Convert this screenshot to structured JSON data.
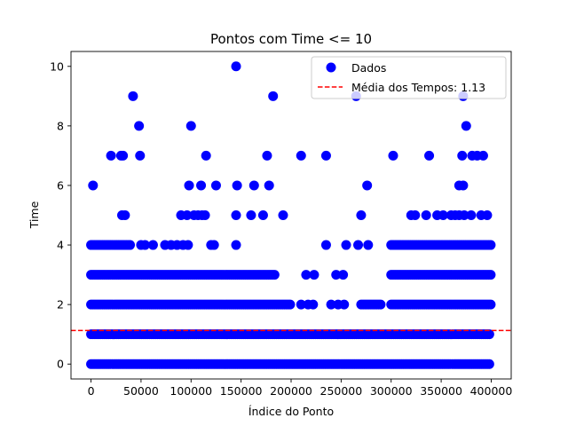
{
  "chart_data": {
    "type": "scatter",
    "title": "Pontos com Time <= 10",
    "xlabel": "Índice do Ponto",
    "ylabel": "Time",
    "xlim": [
      -20000,
      420000
    ],
    "ylim": [
      -0.5,
      10.5
    ],
    "x_ticks": [
      0,
      50000,
      100000,
      150000,
      200000,
      250000,
      300000,
      350000,
      400000
    ],
    "y_ticks": [
      0,
      2,
      4,
      6,
      8,
      10
    ],
    "grid": false,
    "legend_position": "top-right",
    "series": [
      {
        "name": "Dados",
        "color": "#0000ff",
        "marker": "circle",
        "bands": [
          {
            "y": 0,
            "ranges": [
              [
                0,
                400000
              ]
            ]
          },
          {
            "y": 1,
            "ranges": [
              [
                0,
                400000
              ]
            ]
          },
          {
            "y": 2,
            "ranges": [
              [
                0,
                200000
              ],
              [
                270000,
                290000
              ],
              [
                300000,
                400000
              ]
            ]
          },
          {
            "y": 3,
            "ranges": [
              [
                0,
                185000
              ],
              [
                300000,
                400000
              ]
            ]
          },
          {
            "y": 4,
            "ranges": [
              [
                0,
                40000
              ],
              [
                300000,
                400000
              ]
            ]
          }
        ],
        "points": [
          [
            2000,
            6
          ],
          [
            20000,
            7
          ],
          [
            30000,
            7
          ],
          [
            32000,
            7
          ],
          [
            42000,
            9
          ],
          [
            48000,
            8
          ],
          [
            49000,
            7
          ],
          [
            31000,
            5
          ],
          [
            34000,
            5
          ],
          [
            100000,
            8
          ],
          [
            115000,
            7
          ],
          [
            98000,
            6
          ],
          [
            110000,
            6
          ],
          [
            125000,
            6
          ],
          [
            145000,
            10
          ],
          [
            146000,
            6
          ],
          [
            163000,
            6
          ],
          [
            176000,
            7
          ],
          [
            178000,
            6
          ],
          [
            182000,
            9
          ],
          [
            90000,
            5
          ],
          [
            96000,
            5
          ],
          [
            103000,
            5
          ],
          [
            107000,
            5
          ],
          [
            111000,
            5
          ],
          [
            114000,
            5
          ],
          [
            145000,
            5
          ],
          [
            160000,
            5
          ],
          [
            172000,
            5
          ],
          [
            192000,
            5
          ],
          [
            210000,
            7
          ],
          [
            235000,
            7
          ],
          [
            265000,
            9
          ],
          [
            270000,
            5
          ],
          [
            276000,
            6
          ],
          [
            302000,
            7
          ],
          [
            338000,
            7
          ],
          [
            372000,
            9
          ],
          [
            375000,
            8
          ],
          [
            371000,
            7
          ],
          [
            381000,
            7
          ],
          [
            386000,
            7
          ],
          [
            392000,
            7
          ],
          [
            368000,
            6
          ],
          [
            372000,
            6
          ],
          [
            320000,
            5
          ],
          [
            324000,
            5
          ],
          [
            335000,
            5
          ],
          [
            346000,
            5
          ],
          [
            352000,
            5
          ],
          [
            360000,
            5
          ],
          [
            364000,
            5
          ],
          [
            368000,
            5
          ],
          [
            373000,
            5
          ],
          [
            380000,
            5
          ],
          [
            390000,
            5
          ],
          [
            396000,
            5
          ],
          [
            145000,
            4
          ],
          [
            235000,
            4
          ],
          [
            255000,
            4
          ],
          [
            267000,
            4
          ],
          [
            277000,
            4
          ],
          [
            50000,
            4
          ],
          [
            54000,
            4
          ],
          [
            62000,
            4
          ],
          [
            74000,
            4
          ],
          [
            80000,
            4
          ],
          [
            86000,
            4
          ],
          [
            92000,
            4
          ],
          [
            97000,
            4
          ],
          [
            120000,
            4
          ],
          [
            123000,
            4
          ],
          [
            215000,
            3
          ],
          [
            223000,
            3
          ],
          [
            245000,
            3
          ],
          [
            252000,
            3
          ],
          [
            210000,
            2
          ],
          [
            217000,
            2
          ],
          [
            240000,
            2
          ],
          [
            247000,
            2
          ],
          [
            253000,
            2
          ],
          [
            222000,
            2
          ]
        ]
      },
      {
        "name": "Média dos Tempos: 1.13",
        "type": "hline",
        "y": 1.13,
        "color": "#ff0000",
        "linestyle": "dashed"
      }
    ]
  }
}
